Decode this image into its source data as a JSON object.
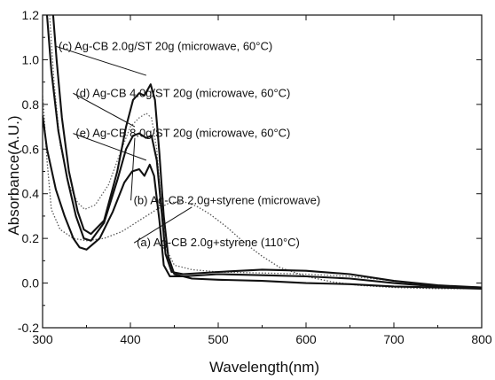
{
  "chart_data": {
    "type": "line",
    "xlabel": "Wavelength(nm)",
    "ylabel": "Absorbance(A.U.)",
    "xlim": [
      300,
      800
    ],
    "ylim": [
      -0.2,
      1.2
    ],
    "x_ticks": [
      300,
      400,
      500,
      600,
      700,
      800
    ],
    "y_ticks": [
      -0.2,
      0.0,
      0.2,
      0.4,
      0.6,
      0.8,
      1.0,
      1.2
    ],
    "x_tick_labels": [
      "300",
      "400",
      "500",
      "600",
      "700",
      "800"
    ],
    "y_tick_labels": [
      "-0.2",
      "0.0",
      "0.2",
      "0.4",
      "0.6",
      "0.8",
      "1.0",
      "1.2"
    ],
    "grid": false,
    "legend": "none",
    "series": [
      {
        "name": "(a) Ag-CB 2.0g+styrene (110°C)",
        "style": "dotted",
        "color": "#555555",
        "label_x": 500,
        "label_y": 0.18,
        "arrow_to": [
          470,
          0.34
        ],
        "points": [
          [
            300,
            0.85
          ],
          [
            305,
            0.55
          ],
          [
            310,
            0.33
          ],
          [
            320,
            0.24
          ],
          [
            335,
            0.2
          ],
          [
            350,
            0.19
          ],
          [
            370,
            0.2
          ],
          [
            390,
            0.23
          ],
          [
            410,
            0.28
          ],
          [
            430,
            0.33
          ],
          [
            445,
            0.36
          ],
          [
            460,
            0.365
          ],
          [
            475,
            0.345
          ],
          [
            490,
            0.31
          ],
          [
            510,
            0.25
          ],
          [
            530,
            0.18
          ],
          [
            550,
            0.12
          ],
          [
            570,
            0.07
          ],
          [
            600,
            0.03
          ],
          [
            630,
            0.005
          ],
          [
            660,
            -0.01
          ],
          [
            700,
            -0.02
          ],
          [
            750,
            -0.025
          ],
          [
            800,
            -0.025
          ]
        ]
      },
      {
        "name": "(b) Ag-CB 2.0g+styrene (microwave)",
        "style": "dotted",
        "color": "#666666",
        "label_x": 510,
        "label_y": 0.37,
        "arrow_to": [
          405,
          0.65
        ],
        "points": [
          [
            308,
            1.2
          ],
          [
            313,
            0.9
          ],
          [
            320,
            0.62
          ],
          [
            330,
            0.44
          ],
          [
            340,
            0.36
          ],
          [
            348,
            0.33
          ],
          [
            360,
            0.35
          ],
          [
            375,
            0.44
          ],
          [
            390,
            0.6
          ],
          [
            400,
            0.7
          ],
          [
            410,
            0.74
          ],
          [
            418,
            0.76
          ],
          [
            424,
            0.74
          ],
          [
            430,
            0.6
          ],
          [
            435,
            0.35
          ],
          [
            440,
            0.16
          ],
          [
            450,
            0.08
          ],
          [
            470,
            0.06
          ],
          [
            500,
            0.05
          ],
          [
            550,
            0.045
          ],
          [
            600,
            0.04
          ],
          [
            650,
            0.03
          ],
          [
            700,
            0.01
          ],
          [
            750,
            -0.01
          ],
          [
            800,
            -0.02
          ]
        ]
      },
      {
        "name": "(c) Ag-CB 2.0g/ST 20g (microwave, 60°C)",
        "style": "solid",
        "color": "#111111",
        "label_x": 440,
        "label_y": 1.06,
        "arrow_to": [
          418,
          0.93
        ],
        "points": [
          [
            312,
            1.2
          ],
          [
            316,
            1.0
          ],
          [
            322,
            0.74
          ],
          [
            330,
            0.5
          ],
          [
            340,
            0.32
          ],
          [
            347,
            0.24
          ],
          [
            355,
            0.22
          ],
          [
            370,
            0.28
          ],
          [
            385,
            0.5
          ],
          [
            395,
            0.7
          ],
          [
            403,
            0.82
          ],
          [
            410,
            0.85
          ],
          [
            416,
            0.84
          ],
          [
            423,
            0.89
          ],
          [
            428,
            0.82
          ],
          [
            433,
            0.58
          ],
          [
            438,
            0.3
          ],
          [
            443,
            0.12
          ],
          [
            450,
            0.04
          ],
          [
            470,
            0.02
          ],
          [
            500,
            0.015
          ],
          [
            550,
            0.01
          ],
          [
            600,
            0.0
          ],
          [
            650,
            -0.005
          ],
          [
            700,
            -0.015
          ],
          [
            750,
            -0.02
          ],
          [
            800,
            -0.025
          ]
        ]
      },
      {
        "name": "(d) Ag-CB 4.0g/ST 20g (microwave, 60°C)",
        "style": "solid",
        "color": "#111111",
        "label_x": 460,
        "label_y": 0.85,
        "arrow_to": [
          405,
          0.7
        ],
        "points": [
          [
            305,
            1.2
          ],
          [
            310,
            0.95
          ],
          [
            318,
            0.68
          ],
          [
            328,
            0.47
          ],
          [
            338,
            0.3
          ],
          [
            347,
            0.2
          ],
          [
            355,
            0.19
          ],
          [
            370,
            0.27
          ],
          [
            385,
            0.46
          ],
          [
            395,
            0.6
          ],
          [
            403,
            0.66
          ],
          [
            410,
            0.67
          ],
          [
            418,
            0.65
          ],
          [
            424,
            0.66
          ],
          [
            430,
            0.55
          ],
          [
            435,
            0.34
          ],
          [
            440,
            0.13
          ],
          [
            447,
            0.05
          ],
          [
            460,
            0.04
          ],
          [
            500,
            0.05
          ],
          [
            550,
            0.06
          ],
          [
            600,
            0.055
          ],
          [
            650,
            0.04
          ],
          [
            700,
            0.01
          ],
          [
            750,
            -0.01
          ],
          [
            800,
            -0.02
          ]
        ]
      },
      {
        "name": "(e) Ag-CB 8.0g/ST 20g (microwave, 60°C)",
        "style": "solid",
        "color": "#111111",
        "label_x": 460,
        "label_y": 0.67,
        "arrow_to": [
          418,
          0.55
        ],
        "points": [
          [
            300,
            0.75
          ],
          [
            305,
            0.6
          ],
          [
            315,
            0.42
          ],
          [
            325,
            0.3
          ],
          [
            335,
            0.2
          ],
          [
            342,
            0.16
          ],
          [
            350,
            0.15
          ],
          [
            365,
            0.2
          ],
          [
            380,
            0.32
          ],
          [
            393,
            0.45
          ],
          [
            402,
            0.5
          ],
          [
            410,
            0.51
          ],
          [
            416,
            0.48
          ],
          [
            422,
            0.53
          ],
          [
            427,
            0.48
          ],
          [
            433,
            0.28
          ],
          [
            438,
            0.08
          ],
          [
            445,
            0.03
          ],
          [
            460,
            0.03
          ],
          [
            500,
            0.04
          ],
          [
            550,
            0.035
          ],
          [
            600,
            0.03
          ],
          [
            650,
            0.02
          ],
          [
            700,
            0.0
          ],
          [
            750,
            -0.015
          ],
          [
            800,
            -0.02
          ]
        ]
      }
    ]
  }
}
